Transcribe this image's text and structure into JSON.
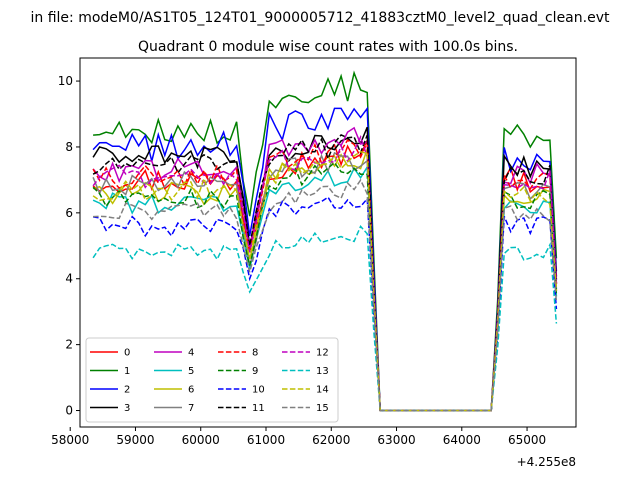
{
  "chart_data": {
    "type": "line",
    "suptitle": "in file: modeM0/AS1T05_124T01_9000005712_41883cztM0_level2_quad_clean.evt",
    "title": "Quadrant 0 module wise count rates with 100.0s bins.",
    "xlabel": "",
    "ylabel": "",
    "x_offset_label": "+4.255e8",
    "xlim": [
      58150,
      65750
    ],
    "ylim": [
      -0.5,
      10.7
    ],
    "x_ticks": [
      58000,
      59000,
      60000,
      61000,
      62000,
      63000,
      64000,
      65000
    ],
    "x_tick_labels": [
      "58000",
      "59000",
      "60000",
      "61000",
      "62000",
      "63000",
      "64000",
      "65000"
    ],
    "y_ticks": [
      0,
      2,
      4,
      6,
      8,
      10
    ],
    "y_tick_labels": [
      "0",
      "2",
      "4",
      "6",
      "8",
      "10"
    ],
    "legend_position": "lower-left",
    "legend_columns": 4,
    "grid": false,
    "series": [
      {
        "name": "0",
        "color": "#ff0000",
        "dash": "solid",
        "base": 7.0,
        "b2": 7.4,
        "b3": 7.0,
        "dip": 4.9,
        "amp": 0.4
      },
      {
        "name": "1",
        "color": "#008000",
        "dash": "solid",
        "base": 8.5,
        "b2": 9.4,
        "b3": 8.4,
        "dip": 5.9,
        "amp": 0.45
      },
      {
        "name": "2",
        "color": "#0000ff",
        "dash": "solid",
        "base": 8.0,
        "b2": 8.6,
        "b3": 7.7,
        "dip": 5.3,
        "amp": 0.45
      },
      {
        "name": "3",
        "color": "#000000",
        "dash": "solid",
        "base": 7.7,
        "b2": 7.8,
        "b3": 7.4,
        "dip": 5.0,
        "amp": 0.35
      },
      {
        "name": "4",
        "color": "#bf00bf",
        "dash": "solid",
        "base": 7.3,
        "b2": 7.8,
        "b3": 7.2,
        "dip": 4.9,
        "amp": 0.35
      },
      {
        "name": "5",
        "color": "#00bfbf",
        "dash": "solid",
        "base": 6.3,
        "b2": 6.8,
        "b3": 6.3,
        "dip": 4.3,
        "amp": 0.35
      },
      {
        "name": "6",
        "color": "#bfbf00",
        "dash": "solid",
        "base": 6.6,
        "b2": 7.1,
        "b3": 6.6,
        "dip": 4.6,
        "amp": 0.35
      },
      {
        "name": "7",
        "color": "#808080",
        "dash": "solid",
        "base": 6.9,
        "b2": 7.2,
        "b3": 6.7,
        "dip": 4.4,
        "amp": 0.35
      },
      {
        "name": "8",
        "color": "#ff0000",
        "dash": "dashed",
        "base": 7.1,
        "b2": 7.5,
        "b3": 7.0,
        "dip": 4.8,
        "amp": 0.35
      },
      {
        "name": "9",
        "color": "#008000",
        "dash": "dashed",
        "base": 6.5,
        "b2": 7.0,
        "b3": 6.4,
        "dip": 4.4,
        "amp": 0.35
      },
      {
        "name": "10",
        "color": "#0000ff",
        "dash": "dashed",
        "base": 5.6,
        "b2": 6.0,
        "b3": 5.6,
        "dip": 4.0,
        "amp": 0.3
      },
      {
        "name": "11",
        "color": "#000000",
        "dash": "dashed",
        "base": 7.5,
        "b2": 7.7,
        "b3": 7.2,
        "dip": 5.0,
        "amp": 0.35
      },
      {
        "name": "12",
        "color": "#bf00bf",
        "dash": "dashed",
        "base": 7.1,
        "b2": 7.5,
        "b3": 7.0,
        "dip": 4.8,
        "amp": 0.35
      },
      {
        "name": "13",
        "color": "#00bfbf",
        "dash": "dashed",
        "base": 4.8,
        "b2": 4.9,
        "b3": 4.8,
        "dip": 3.6,
        "amp": 0.25
      },
      {
        "name": "14",
        "color": "#bfbf00",
        "dash": "dashed",
        "base": 6.7,
        "b2": 7.1,
        "b3": 6.6,
        "dip": 4.6,
        "amp": 0.35
      },
      {
        "name": "15",
        "color": "#808080",
        "dash": "dashed",
        "base": 6.0,
        "b2": 6.3,
        "b3": 6.0,
        "dip": 4.2,
        "amp": 0.3
      }
    ]
  }
}
